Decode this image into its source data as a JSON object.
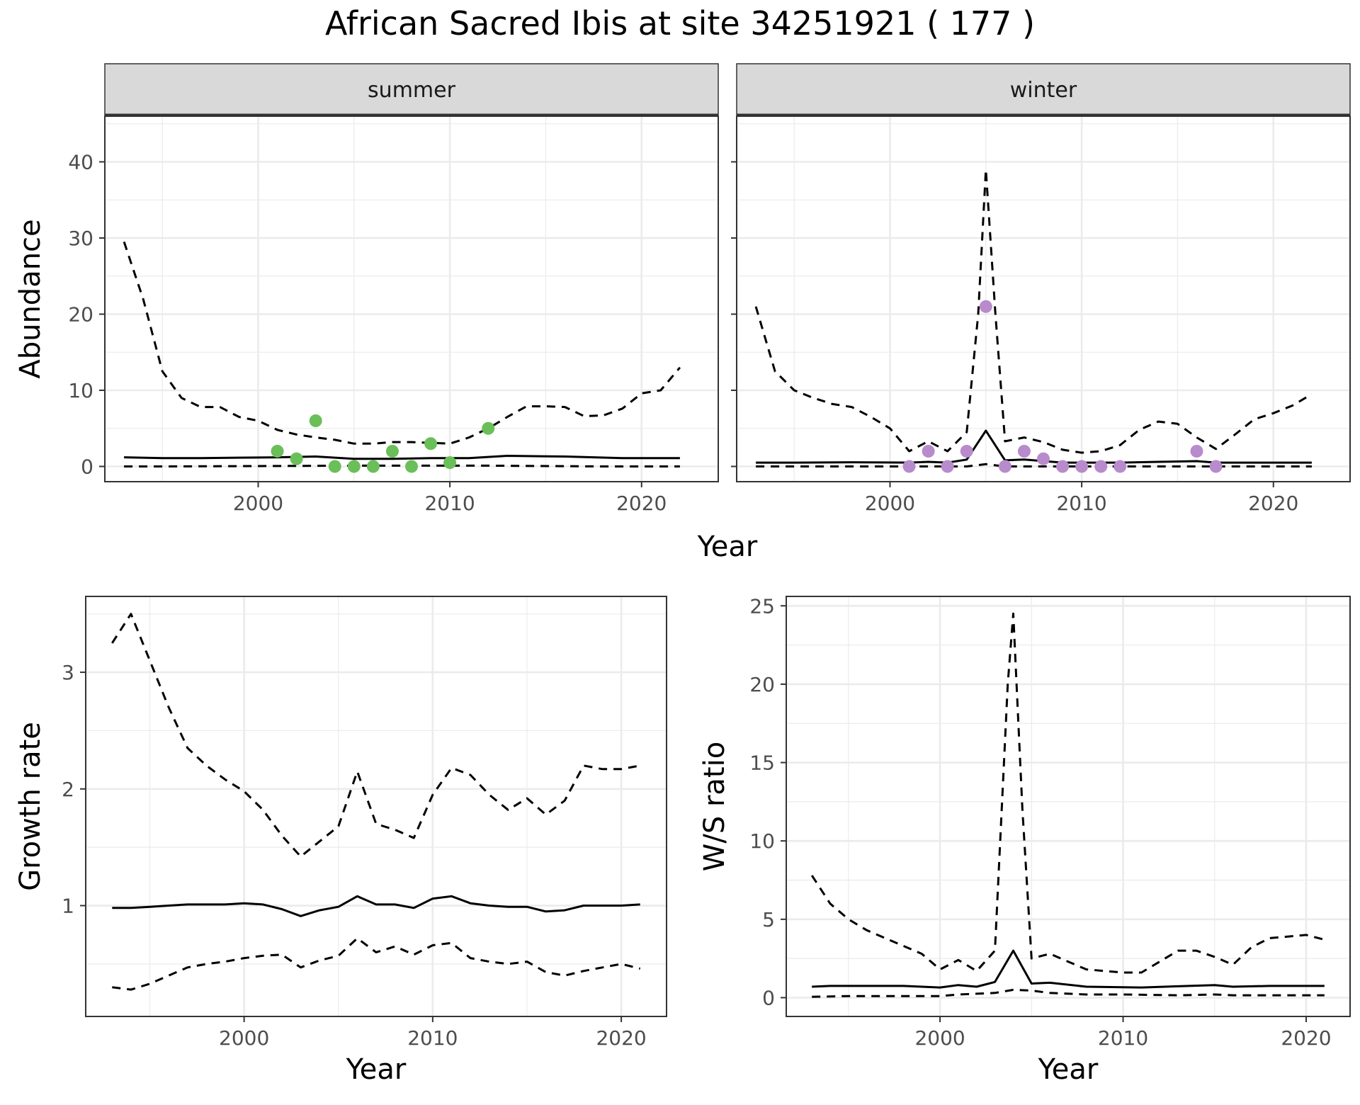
{
  "title": "African Sacred Ibis at site 34251921 ( 177 )",
  "colors": {
    "summer_points": "#6abf59",
    "winter_points": "#b88bcc",
    "line": "#000000",
    "strip_bg": "#d9d9d9",
    "grid": "#ebebeb"
  },
  "chart_data": [
    {
      "type": "line",
      "panel": "summer",
      "strip_label": "summer",
      "xlabel": "Year",
      "ylabel": "Abundance",
      "xlim": [
        1992,
        2024
      ],
      "ylim": [
        -2,
        46
      ],
      "xticks": [
        2000,
        2010,
        2020
      ],
      "yticks": [
        0,
        10,
        20,
        30,
        40
      ],
      "grid": true,
      "series": [
        {
          "style": "solid",
          "x": [
            1993,
            1995,
            1997,
            1999,
            2001,
            2003,
            2005,
            2007,
            2009,
            2011,
            2013,
            2016,
            2019,
            2022
          ],
          "y": [
            1.2,
            1.1,
            1.1,
            1.15,
            1.2,
            1.3,
            1.0,
            1.0,
            1.1,
            1.1,
            1.4,
            1.3,
            1.1,
            1.1
          ]
        },
        {
          "style": "dashed",
          "x": [
            1993,
            1995,
            2005,
            2012,
            2018,
            2022
          ],
          "y": [
            0,
            0,
            0.1,
            0.1,
            0,
            0
          ]
        },
        {
          "style": "dashed",
          "x": [
            1993,
            1994,
            1995,
            1996,
            1997,
            1998,
            1999,
            2000,
            2001,
            2002,
            2003,
            2004,
            2005,
            2006,
            2007,
            2008,
            2009,
            2010,
            2011,
            2012,
            2013,
            2014,
            2015,
            2016,
            2017,
            2018,
            2019,
            2020,
            2021,
            2022
          ],
          "y": [
            29.5,
            22,
            12.5,
            9,
            7.8,
            7.8,
            6.5,
            6,
            4.8,
            4.2,
            3.8,
            3.5,
            3.0,
            3.0,
            3.2,
            3.2,
            3.1,
            3.0,
            3.8,
            5.0,
            6.5,
            7.9,
            7.9,
            7.8,
            6.6,
            6.7,
            7.6,
            9.6,
            10,
            13
          ]
        }
      ],
      "points": {
        "x": [
          2001,
          2002,
          2003,
          2004,
          2005,
          2006,
          2007,
          2008,
          2009,
          2010,
          2012
        ],
        "y": [
          2,
          1,
          6,
          0,
          0,
          0,
          2,
          0,
          3,
          0.5,
          5
        ]
      }
    },
    {
      "type": "line",
      "panel": "winter",
      "strip_label": "winter",
      "xlabel": "Year",
      "ylabel": "Abundance",
      "xlim": [
        1992,
        2024
      ],
      "ylim": [
        -2,
        46
      ],
      "xticks": [
        2000,
        2010,
        2020
      ],
      "yticks": [
        0,
        10,
        20,
        30,
        40
      ],
      "grid": true,
      "series": [
        {
          "style": "solid",
          "x": [
            1993,
            1995,
            1998,
            2001,
            2002,
            2003,
            2004,
            2005,
            2006,
            2007,
            2009,
            2012,
            2014,
            2016,
            2017,
            2019,
            2022
          ],
          "y": [
            0.5,
            0.5,
            0.55,
            0.5,
            0.6,
            0.5,
            0.9,
            4.7,
            0.8,
            0.9,
            0.5,
            0.5,
            0.6,
            0.7,
            0.5,
            0.5,
            0.5
          ]
        },
        {
          "style": "dashed",
          "x": [
            1993,
            1998,
            2004,
            2005,
            2006,
            2011,
            2016,
            2022
          ],
          "y": [
            0,
            0,
            0,
            0.3,
            0,
            0,
            0,
            0
          ]
        },
        {
          "style": "dashed",
          "x": [
            1993,
            1994,
            1995,
            1996,
            1997,
            1998,
            1999,
            2000,
            2001,
            2002,
            2003,
            2004,
            2004.6,
            2005,
            2005.5,
            2006,
            2007,
            2008,
            2009,
            2010,
            2011,
            2012,
            2013,
            2014,
            2015,
            2016,
            2017,
            2018,
            2019,
            2020,
            2021,
            2022
          ],
          "y": [
            21,
            12.5,
            10,
            9,
            8.2,
            7.8,
            6.5,
            5,
            2,
            3.3,
            2,
            4.5,
            20,
            39,
            20,
            3.3,
            3.8,
            3.2,
            2.2,
            1.8,
            2.0,
            2.8,
            4.8,
            5.9,
            5.6,
            3.8,
            2.3,
            4.2,
            6.2,
            7.0,
            8.0,
            9.5
          ]
        }
      ],
      "points": {
        "x": [
          2001,
          2002,
          2003,
          2004,
          2005,
          2006,
          2007,
          2008,
          2009,
          2010,
          2011,
          2012,
          2016,
          2017
        ],
        "y": [
          0,
          2,
          0,
          2,
          21,
          0,
          2,
          1,
          0,
          0,
          0,
          0,
          2,
          0
        ]
      }
    },
    {
      "type": "line",
      "panel": "growth",
      "xlabel": "Year",
      "ylabel": "Growth rate",
      "xlim": [
        1991.6,
        2022.4
      ],
      "ylim": [
        0.05,
        3.65
      ],
      "xticks": [
        2000,
        2010,
        2020
      ],
      "yticks": [
        1,
        2,
        3
      ],
      "grid": true,
      "series": [
        {
          "style": "solid",
          "x": [
            1993,
            1994,
            1995,
            1996,
            1997,
            1998,
            1999,
            2000,
            2001,
            2002,
            2003,
            2004,
            2005,
            2006,
            2007,
            2008,
            2009,
            2010,
            2011,
            2012,
            2013,
            2014,
            2015,
            2016,
            2017,
            2018,
            2019,
            2020,
            2021
          ],
          "y": [
            0.98,
            0.98,
            0.99,
            1.0,
            1.01,
            1.01,
            1.01,
            1.02,
            1.01,
            0.97,
            0.91,
            0.96,
            0.99,
            1.08,
            1.01,
            1.01,
            0.98,
            1.06,
            1.08,
            1.02,
            1.0,
            0.99,
            0.99,
            0.95,
            0.96,
            1.0,
            1.0,
            1.0,
            1.01
          ]
        },
        {
          "style": "dashed",
          "x": [
            1993,
            1994,
            1995,
            1996,
            1997,
            1998,
            1999,
            2000,
            2001,
            2002,
            2003,
            2004,
            2005,
            2006,
            2007,
            2008,
            2009,
            2010,
            2011,
            2012,
            2013,
            2014,
            2015,
            2016,
            2017,
            2018,
            2019,
            2020,
            2021
          ],
          "y": [
            3.25,
            3.5,
            3.1,
            2.7,
            2.35,
            2.2,
            2.08,
            1.98,
            1.82,
            1.6,
            1.42,
            1.55,
            1.68,
            2.15,
            1.7,
            1.65,
            1.58,
            1.95,
            2.18,
            2.12,
            1.95,
            1.82,
            1.92,
            1.78,
            1.9,
            2.2,
            2.17,
            2.17,
            2.2
          ]
        },
        {
          "style": "dashed",
          "x": [
            1993,
            1994,
            1995,
            1996,
            1997,
            1998,
            1999,
            2000,
            2001,
            2002,
            2003,
            2004,
            2005,
            2006,
            2007,
            2008,
            2009,
            2010,
            2011,
            2012,
            2013,
            2014,
            2015,
            2016,
            2017,
            2018,
            2019,
            2020,
            2021
          ],
          "y": [
            0.3,
            0.28,
            0.33,
            0.4,
            0.47,
            0.5,
            0.52,
            0.55,
            0.57,
            0.58,
            0.47,
            0.53,
            0.57,
            0.72,
            0.6,
            0.65,
            0.58,
            0.66,
            0.68,
            0.55,
            0.52,
            0.5,
            0.52,
            0.43,
            0.4,
            0.44,
            0.47,
            0.5,
            0.46
          ]
        }
      ]
    },
    {
      "type": "line",
      "panel": "ratio",
      "xlabel": "Year",
      "ylabel": "W/S ratio",
      "xlim": [
        1991.6,
        2022.4
      ],
      "ylim": [
        -1.2,
        25.6
      ],
      "xticks": [
        2000,
        2010,
        2020
      ],
      "yticks": [
        0,
        5,
        10,
        15,
        20,
        25
      ],
      "grid": true,
      "series": [
        {
          "style": "solid",
          "x": [
            1993,
            1994,
            1995,
            1998,
            2000,
            2001,
            2002,
            2003,
            2004,
            2005,
            2006,
            2008,
            2011,
            2015,
            2016,
            2018,
            2021
          ],
          "y": [
            0.7,
            0.75,
            0.75,
            0.75,
            0.65,
            0.8,
            0.7,
            1.0,
            3.0,
            0.9,
            0.95,
            0.7,
            0.65,
            0.8,
            0.7,
            0.75,
            0.75
          ]
        },
        {
          "style": "dashed",
          "x": [
            1993,
            1995,
            1998,
            2000,
            2001,
            2002,
            2003,
            2004,
            2005,
            2006,
            2008,
            2010,
            2013,
            2015,
            2016,
            2018,
            2021
          ],
          "y": [
            0.05,
            0.1,
            0.1,
            0.1,
            0.2,
            0.25,
            0.3,
            0.5,
            0.45,
            0.3,
            0.2,
            0.2,
            0.15,
            0.2,
            0.15,
            0.15,
            0.15
          ]
        },
        {
          "style": "dashed",
          "x": [
            1993,
            1994,
            1995,
            1996,
            1997,
            1998,
            1999,
            2000,
            2001,
            2002,
            2003,
            2003.7,
            2004,
            2004.5,
            2005,
            2006,
            2007,
            2008,
            2009,
            2010,
            2011,
            2012,
            2013,
            2014,
            2015,
            2016,
            2017,
            2018,
            2019,
            2020,
            2021
          ],
          "y": [
            7.8,
            6.0,
            5.0,
            4.3,
            3.8,
            3.3,
            2.8,
            1.8,
            2.4,
            1.7,
            3.0,
            20,
            24.5,
            12,
            2.5,
            2.8,
            2.3,
            1.8,
            1.7,
            1.6,
            1.6,
            2.3,
            3.0,
            3.0,
            2.6,
            2.1,
            3.2,
            3.8,
            3.9,
            4.0,
            3.7
          ]
        }
      ]
    }
  ]
}
